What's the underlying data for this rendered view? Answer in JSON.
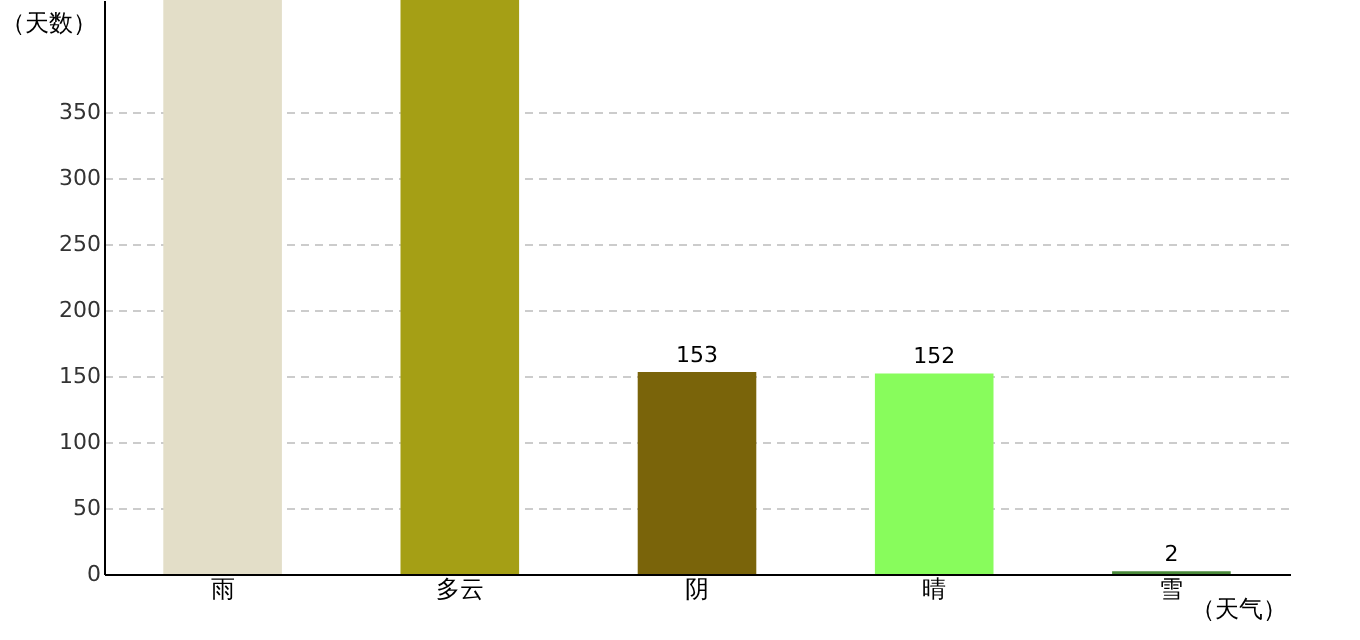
{
  "chart_data": {
    "type": "bar",
    "xlabel": "（天气）",
    "ylabel": "（天数）",
    "categories": [
      "雨",
      "多云",
      "阴",
      "晴",
      "雪"
    ],
    "values": [
      435,
      435,
      153,
      152,
      2
    ],
    "colors": [
      "#e3dec8",
      "#a59f15",
      "#7a640a",
      "#88fc5c",
      "#4a8a3a"
    ],
    "value_labels": [
      null,
      null,
      "153",
      "152",
      "2"
    ],
    "ylim": [
      0,
      435
    ],
    "yticks": [
      0,
      50,
      100,
      150,
      200,
      250,
      300,
      350
    ],
    "grid": "y"
  }
}
